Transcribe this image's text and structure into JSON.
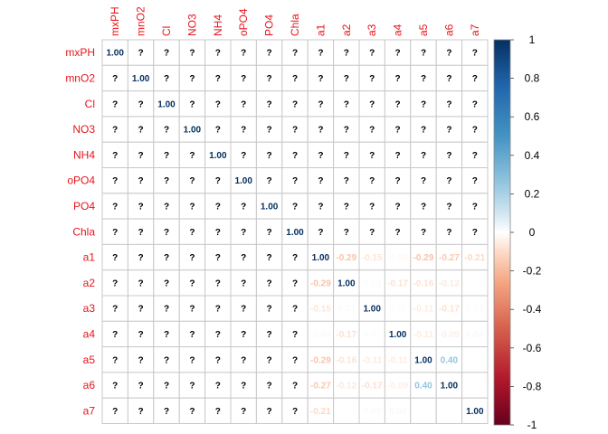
{
  "chart_data": {
    "type": "heatmap",
    "variables": [
      "mxPH",
      "mnO2",
      "Cl",
      "NO3",
      "NH4",
      "oPO4",
      "PO4",
      "Chla",
      "a1",
      "a2",
      "a3",
      "a4",
      "a5",
      "a6",
      "a7"
    ],
    "na_label": "?",
    "matrix": [
      [
        1.0,
        null,
        null,
        null,
        null,
        null,
        null,
        null,
        null,
        null,
        null,
        null,
        null,
        null,
        null
      ],
      [
        null,
        1.0,
        null,
        null,
        null,
        null,
        null,
        null,
        null,
        null,
        null,
        null,
        null,
        null,
        null
      ],
      [
        null,
        null,
        1.0,
        null,
        null,
        null,
        null,
        null,
        null,
        null,
        null,
        null,
        null,
        null,
        null
      ],
      [
        null,
        null,
        null,
        1.0,
        null,
        null,
        null,
        null,
        null,
        null,
        null,
        null,
        null,
        null,
        null
      ],
      [
        null,
        null,
        null,
        null,
        1.0,
        null,
        null,
        null,
        null,
        null,
        null,
        null,
        null,
        null,
        null
      ],
      [
        null,
        null,
        null,
        null,
        null,
        1.0,
        null,
        null,
        null,
        null,
        null,
        null,
        null,
        null,
        null
      ],
      [
        null,
        null,
        null,
        null,
        null,
        null,
        1.0,
        null,
        null,
        null,
        null,
        null,
        null,
        null,
        null
      ],
      [
        null,
        null,
        null,
        null,
        null,
        null,
        null,
        1.0,
        null,
        null,
        null,
        null,
        null,
        null,
        null
      ],
      [
        null,
        null,
        null,
        null,
        null,
        null,
        null,
        null,
        1.0,
        -0.29,
        -0.15,
        -0.04,
        -0.29,
        -0.27,
        -0.21
      ],
      [
        null,
        null,
        null,
        null,
        null,
        null,
        null,
        null,
        -0.29,
        1.0,
        0.03,
        -0.17,
        -0.16,
        -0.12,
        0.01
      ],
      [
        null,
        null,
        null,
        null,
        null,
        null,
        null,
        null,
        -0.15,
        0.03,
        1.0,
        0.02,
        -0.11,
        -0.17,
        0.03
      ],
      [
        null,
        null,
        null,
        null,
        null,
        null,
        null,
        null,
        -0.04,
        -0.17,
        0.02,
        1.0,
        -0.11,
        -0.09,
        0.04
      ],
      [
        null,
        null,
        null,
        null,
        null,
        null,
        null,
        null,
        -0.29,
        -0.16,
        -0.11,
        -0.11,
        1.0,
        0.4,
        0.01
      ],
      [
        null,
        null,
        null,
        null,
        null,
        null,
        null,
        null,
        -0.27,
        -0.12,
        -0.17,
        -0.09,
        0.4,
        1.0,
        0.01
      ],
      [
        null,
        null,
        null,
        null,
        null,
        null,
        null,
        null,
        -0.21,
        0.01,
        0.03,
        0.04,
        0.01,
        0.01,
        1.0
      ]
    ],
    "legend": {
      "ticks": [
        "1",
        "0.8",
        "0.6",
        "0.4",
        "0.2",
        "0",
        "-0.2",
        "-0.4",
        "-0.6",
        "-0.8",
        "-1"
      ],
      "range": [
        -1,
        1
      ]
    },
    "colors": {
      "negative_end": "#67001f",
      "negative_mid": "#d6604d",
      "neutral": "#ffffff",
      "positive_mid": "#4393c3",
      "positive_end": "#053061",
      "label_color": "#e8141c",
      "grid": "#c8c8c8"
    }
  }
}
